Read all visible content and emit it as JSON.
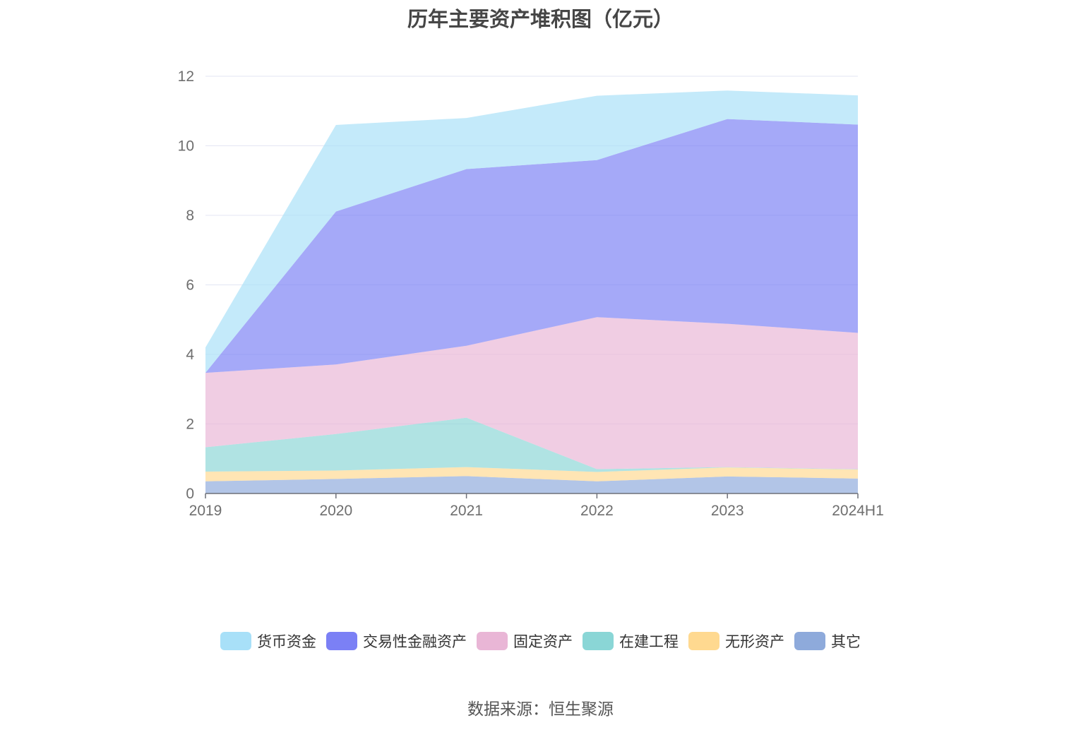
{
  "chart_data": {
    "type": "area",
    "stacked": true,
    "title": "历年主要资产堆积图（亿元）",
    "categories": [
      "2019",
      "2020",
      "2021",
      "2022",
      "2023",
      "2024H1"
    ],
    "ylim": [
      0,
      12
    ],
    "yticks": [
      0,
      2,
      4,
      6,
      8,
      10,
      12
    ],
    "grid": true,
    "legend_position": "bottom",
    "series": [
      {
        "name": "其它",
        "color": "#8eaadb",
        "values": [
          0.35,
          0.42,
          0.5,
          0.35,
          0.49,
          0.43
        ]
      },
      {
        "name": "无形资产",
        "color": "#ffd990",
        "values": [
          0.28,
          0.24,
          0.26,
          0.27,
          0.26,
          0.26
        ]
      },
      {
        "name": "在建工程",
        "color": "#8ad6d6",
        "values": [
          0.7,
          1.05,
          1.42,
          0.08,
          0.01,
          0.01
        ]
      },
      {
        "name": "固定资产",
        "color": "#e9b6d6",
        "values": [
          2.14,
          2.0,
          2.07,
          4.37,
          4.12,
          3.92
        ]
      },
      {
        "name": "交易性金融资产",
        "color": "#7b80f5",
        "values": [
          0.0,
          4.4,
          5.08,
          4.52,
          5.89,
          5.99
        ]
      },
      {
        "name": "货币资金",
        "color": "#a8e0f8",
        "values": [
          0.73,
          2.49,
          1.47,
          1.85,
          0.82,
          0.84
        ]
      }
    ]
  },
  "legend": [
    {
      "label": "货币资金",
      "color": "#a8e0f8"
    },
    {
      "label": "交易性金融资产",
      "color": "#7b80f5"
    },
    {
      "label": "固定资产",
      "color": "#e9b6d6"
    },
    {
      "label": "在建工程",
      "color": "#8ad6d6"
    },
    {
      "label": "无形资产",
      "color": "#ffd990"
    },
    {
      "label": "其它",
      "color": "#8eaadb"
    }
  ],
  "source": "数据来源：恒生聚源"
}
